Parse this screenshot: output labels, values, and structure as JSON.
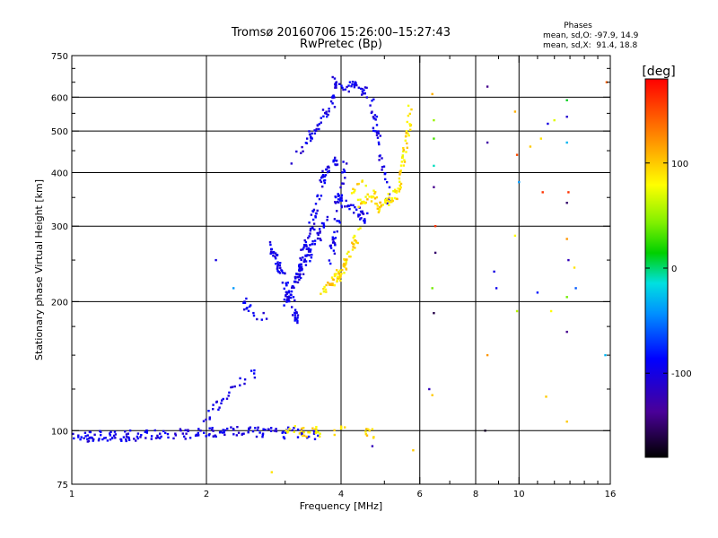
{
  "chart_data": {
    "type": "scatter",
    "title": "Tromsø 20160706 15:26:00–15:27:43",
    "subtitle": "RwPretec (Bp)",
    "xlabel": "Frequency [MHz]",
    "ylabel": "Stationary phase Virtual Height [km]",
    "x_scale": "log",
    "y_scale": "log",
    "xlim": [
      1,
      16
    ],
    "ylim": [
      75,
      750
    ],
    "x_ticks": [
      1,
      2,
      4,
      6,
      8,
      10,
      16
    ],
    "x_tick_labels": [
      "1",
      "2",
      "4",
      "6",
      "8",
      "10",
      "16"
    ],
    "y_ticks": [
      75,
      100,
      200,
      300,
      400,
      500,
      600,
      750
    ],
    "y_tick_labels": [
      "75",
      "100",
      "200",
      "300",
      "400",
      "500",
      "600",
      "750"
    ],
    "grid_x": [
      2,
      4,
      6,
      8,
      10
    ],
    "grid_y": [
      100,
      200,
      300,
      400,
      500,
      600
    ],
    "minor_x_ticks": [
      3,
      5,
      7,
      9,
      11,
      12,
      13,
      14,
      15
    ],
    "minor_y_ticks": [
      125,
      150,
      175,
      250,
      350,
      450,
      550,
      650,
      700
    ],
    "phase_stats": {
      "heading": "Phases",
      "o_line": "mean, sd,O: -97.9, 14.9",
      "x_line": "mean, sd,X:  91.4, 18.8"
    },
    "colorbar": {
      "title": "[deg]",
      "range": [
        -180,
        180
      ],
      "ticks": [
        100,
        0,
        -100
      ],
      "tick_labels": [
        "100",
        "0",
        "-100"
      ]
    },
    "series": [
      {
        "mode": "O",
        "phase_mean": -97.9,
        "phase_sd": 14.9,
        "traces": [
          {
            "f": [
              1.0,
              1.26
            ],
            "h": [
              97,
              97
            ],
            "n": 40
          },
          {
            "f": [
              1.26,
              1.7
            ],
            "h": [
              97,
              98
            ],
            "n": 40
          },
          {
            "f": [
              1.7,
              2.4
            ],
            "h": [
              98,
              100
            ],
            "n": 50
          },
          {
            "f": [
              2.4,
              3.0
            ],
            "h": [
              100,
              98
            ],
            "n": 30
          },
          {
            "f": [
              3.0,
              3.6
            ],
            "h": [
              99,
              98
            ],
            "n": 20
          },
          {
            "f": [
              1.9,
              2.2
            ],
            "h": [
              100,
              120
            ],
            "n": 14
          },
          {
            "f": [
              2.2,
              2.55
            ],
            "h": [
              120,
              135
            ],
            "n": 14
          },
          {
            "f": [
              2.4,
              2.7
            ],
            "h": [
              200,
              183
            ],
            "n": 16
          },
          {
            "f": [
              2.8,
              3.2
            ],
            "h": [
              270,
              180
            ],
            "n": 70
          },
          {
            "f": [
              3.0,
              3.7
            ],
            "h": [
              200,
              310
            ],
            "n": 80
          },
          {
            "f": [
              3.2,
              3.6
            ],
            "h": [
              230,
              360
            ],
            "n": 50
          },
          {
            "f": [
              3.6,
              3.9
            ],
            "h": [
              380,
              430
            ],
            "n": 30
          },
          {
            "f": [
              3.2,
              3.9
            ],
            "h": [
              440,
              600
            ],
            "n": 45
          },
          {
            "f": [
              3.85,
              4.2
            ],
            "h": [
              650,
              630
            ],
            "n": 20
          },
          {
            "f": [
              4.2,
              4.6
            ],
            "h": [
              640,
              615
            ],
            "n": 20
          },
          {
            "f": [
              4.6,
              5.15
            ],
            "h": [
              640,
              330
            ],
            "n": 40
          },
          {
            "f": [
              3.9,
              4.6
            ],
            "h": [
              350,
              310
            ],
            "n": 40
          },
          {
            "f": [
              3.8,
              4.1
            ],
            "h": [
              250,
              420
            ],
            "n": 40
          }
        ]
      },
      {
        "mode": "X",
        "phase_mean": 91.4,
        "phase_sd": 18.8,
        "traces": [
          {
            "f": [
              3.6,
              4.0
            ],
            "h": [
              210,
              235
            ],
            "n": 30
          },
          {
            "f": [
              3.9,
              4.4
            ],
            "h": [
              220,
              290
            ],
            "n": 50
          },
          {
            "f": [
              4.4,
              4.8
            ],
            "h": [
              340,
              360
            ],
            "n": 25
          },
          {
            "f": [
              4.8,
              5.4
            ],
            "h": [
              330,
              360
            ],
            "n": 40
          },
          {
            "f": [
              5.4,
              5.75
            ],
            "h": [
              370,
              570
            ],
            "n": 40
          },
          {
            "f": [
              4.2,
              4.6
            ],
            "h": [
              360,
              380
            ],
            "n": 10
          },
          {
            "f": [
              3.0,
              3.6
            ],
            "h": [
              100,
              99
            ],
            "n": 25
          },
          {
            "f": [
              3.8,
              4.8
            ],
            "h": [
              100,
              98
            ],
            "n": 15
          }
        ]
      }
    ],
    "sparse_points": [
      {
        "f": 6.4,
        "h": 610,
        "p": 110
      },
      {
        "f": 6.45,
        "h": 530,
        "p": 50
      },
      {
        "f": 6.45,
        "h": 480,
        "p": 30
      },
      {
        "f": 6.45,
        "h": 415,
        "p": -10
      },
      {
        "f": 6.45,
        "h": 370,
        "p": -140
      },
      {
        "f": 6.5,
        "h": 300,
        "p": 160
      },
      {
        "f": 6.5,
        "h": 260,
        "p": -150
      },
      {
        "f": 6.4,
        "h": 215,
        "p": 40
      },
      {
        "f": 6.45,
        "h": 188,
        "p": -160
      },
      {
        "f": 6.3,
        "h": 125,
        "p": -120
      },
      {
        "f": 6.4,
        "h": 121,
        "p": 100
      },
      {
        "f": 8.5,
        "h": 635,
        "p": -140
      },
      {
        "f": 8.5,
        "h": 470,
        "p": -130
      },
      {
        "f": 8.8,
        "h": 235,
        "p": -100
      },
      {
        "f": 8.9,
        "h": 215,
        "p": -95
      },
      {
        "f": 8.5,
        "h": 150,
        "p": 120
      },
      {
        "f": 8.4,
        "h": 100,
        "p": -170
      },
      {
        "f": 9.8,
        "h": 555,
        "p": 110
      },
      {
        "f": 9.9,
        "h": 440,
        "p": 150
      },
      {
        "f": 10.0,
        "h": 380,
        "p": -40
      },
      {
        "f": 9.8,
        "h": 285,
        "p": 80
      },
      {
        "f": 9.9,
        "h": 190,
        "p": 60
      },
      {
        "f": 10.6,
        "h": 460,
        "p": 100
      },
      {
        "f": 11.2,
        "h": 480,
        "p": 90
      },
      {
        "f": 11.3,
        "h": 360,
        "p": 160
      },
      {
        "f": 11.6,
        "h": 520,
        "p": -100
      },
      {
        "f": 12.0,
        "h": 530,
        "p": 70
      },
      {
        "f": 12.8,
        "h": 590,
        "p": 10
      },
      {
        "f": 12.8,
        "h": 540,
        "p": -110
      },
      {
        "f": 12.8,
        "h": 470,
        "p": -30
      },
      {
        "f": 12.9,
        "h": 360,
        "p": 160
      },
      {
        "f": 12.8,
        "h": 340,
        "p": -150
      },
      {
        "f": 12.8,
        "h": 280,
        "p": 120
      },
      {
        "f": 12.9,
        "h": 250,
        "p": -120
      },
      {
        "f": 13.3,
        "h": 240,
        "p": 90
      },
      {
        "f": 12.8,
        "h": 205,
        "p": 40
      },
      {
        "f": 12.8,
        "h": 170,
        "p": -140
      },
      {
        "f": 11.8,
        "h": 190,
        "p": 80
      },
      {
        "f": 11.0,
        "h": 210,
        "p": -80
      },
      {
        "f": 11.5,
        "h": 120,
        "p": 100
      },
      {
        "f": 12.8,
        "h": 105,
        "p": 100
      },
      {
        "f": 13.4,
        "h": 215,
        "p": -60
      },
      {
        "f": 15.7,
        "h": 650,
        "p": 140
      },
      {
        "f": 15.6,
        "h": 150,
        "p": -30
      },
      {
        "f": 2.8,
        "h": 80,
        "p": 90
      },
      {
        "f": 5.8,
        "h": 90,
        "p": 100
      },
      {
        "f": 2.3,
        "h": 215,
        "p": -40
      },
      {
        "f": 2.1,
        "h": 250,
        "p": -100
      },
      {
        "f": 3.1,
        "h": 420,
        "p": -110
      },
      {
        "f": 4.7,
        "h": 92,
        "p": -120
      }
    ]
  }
}
